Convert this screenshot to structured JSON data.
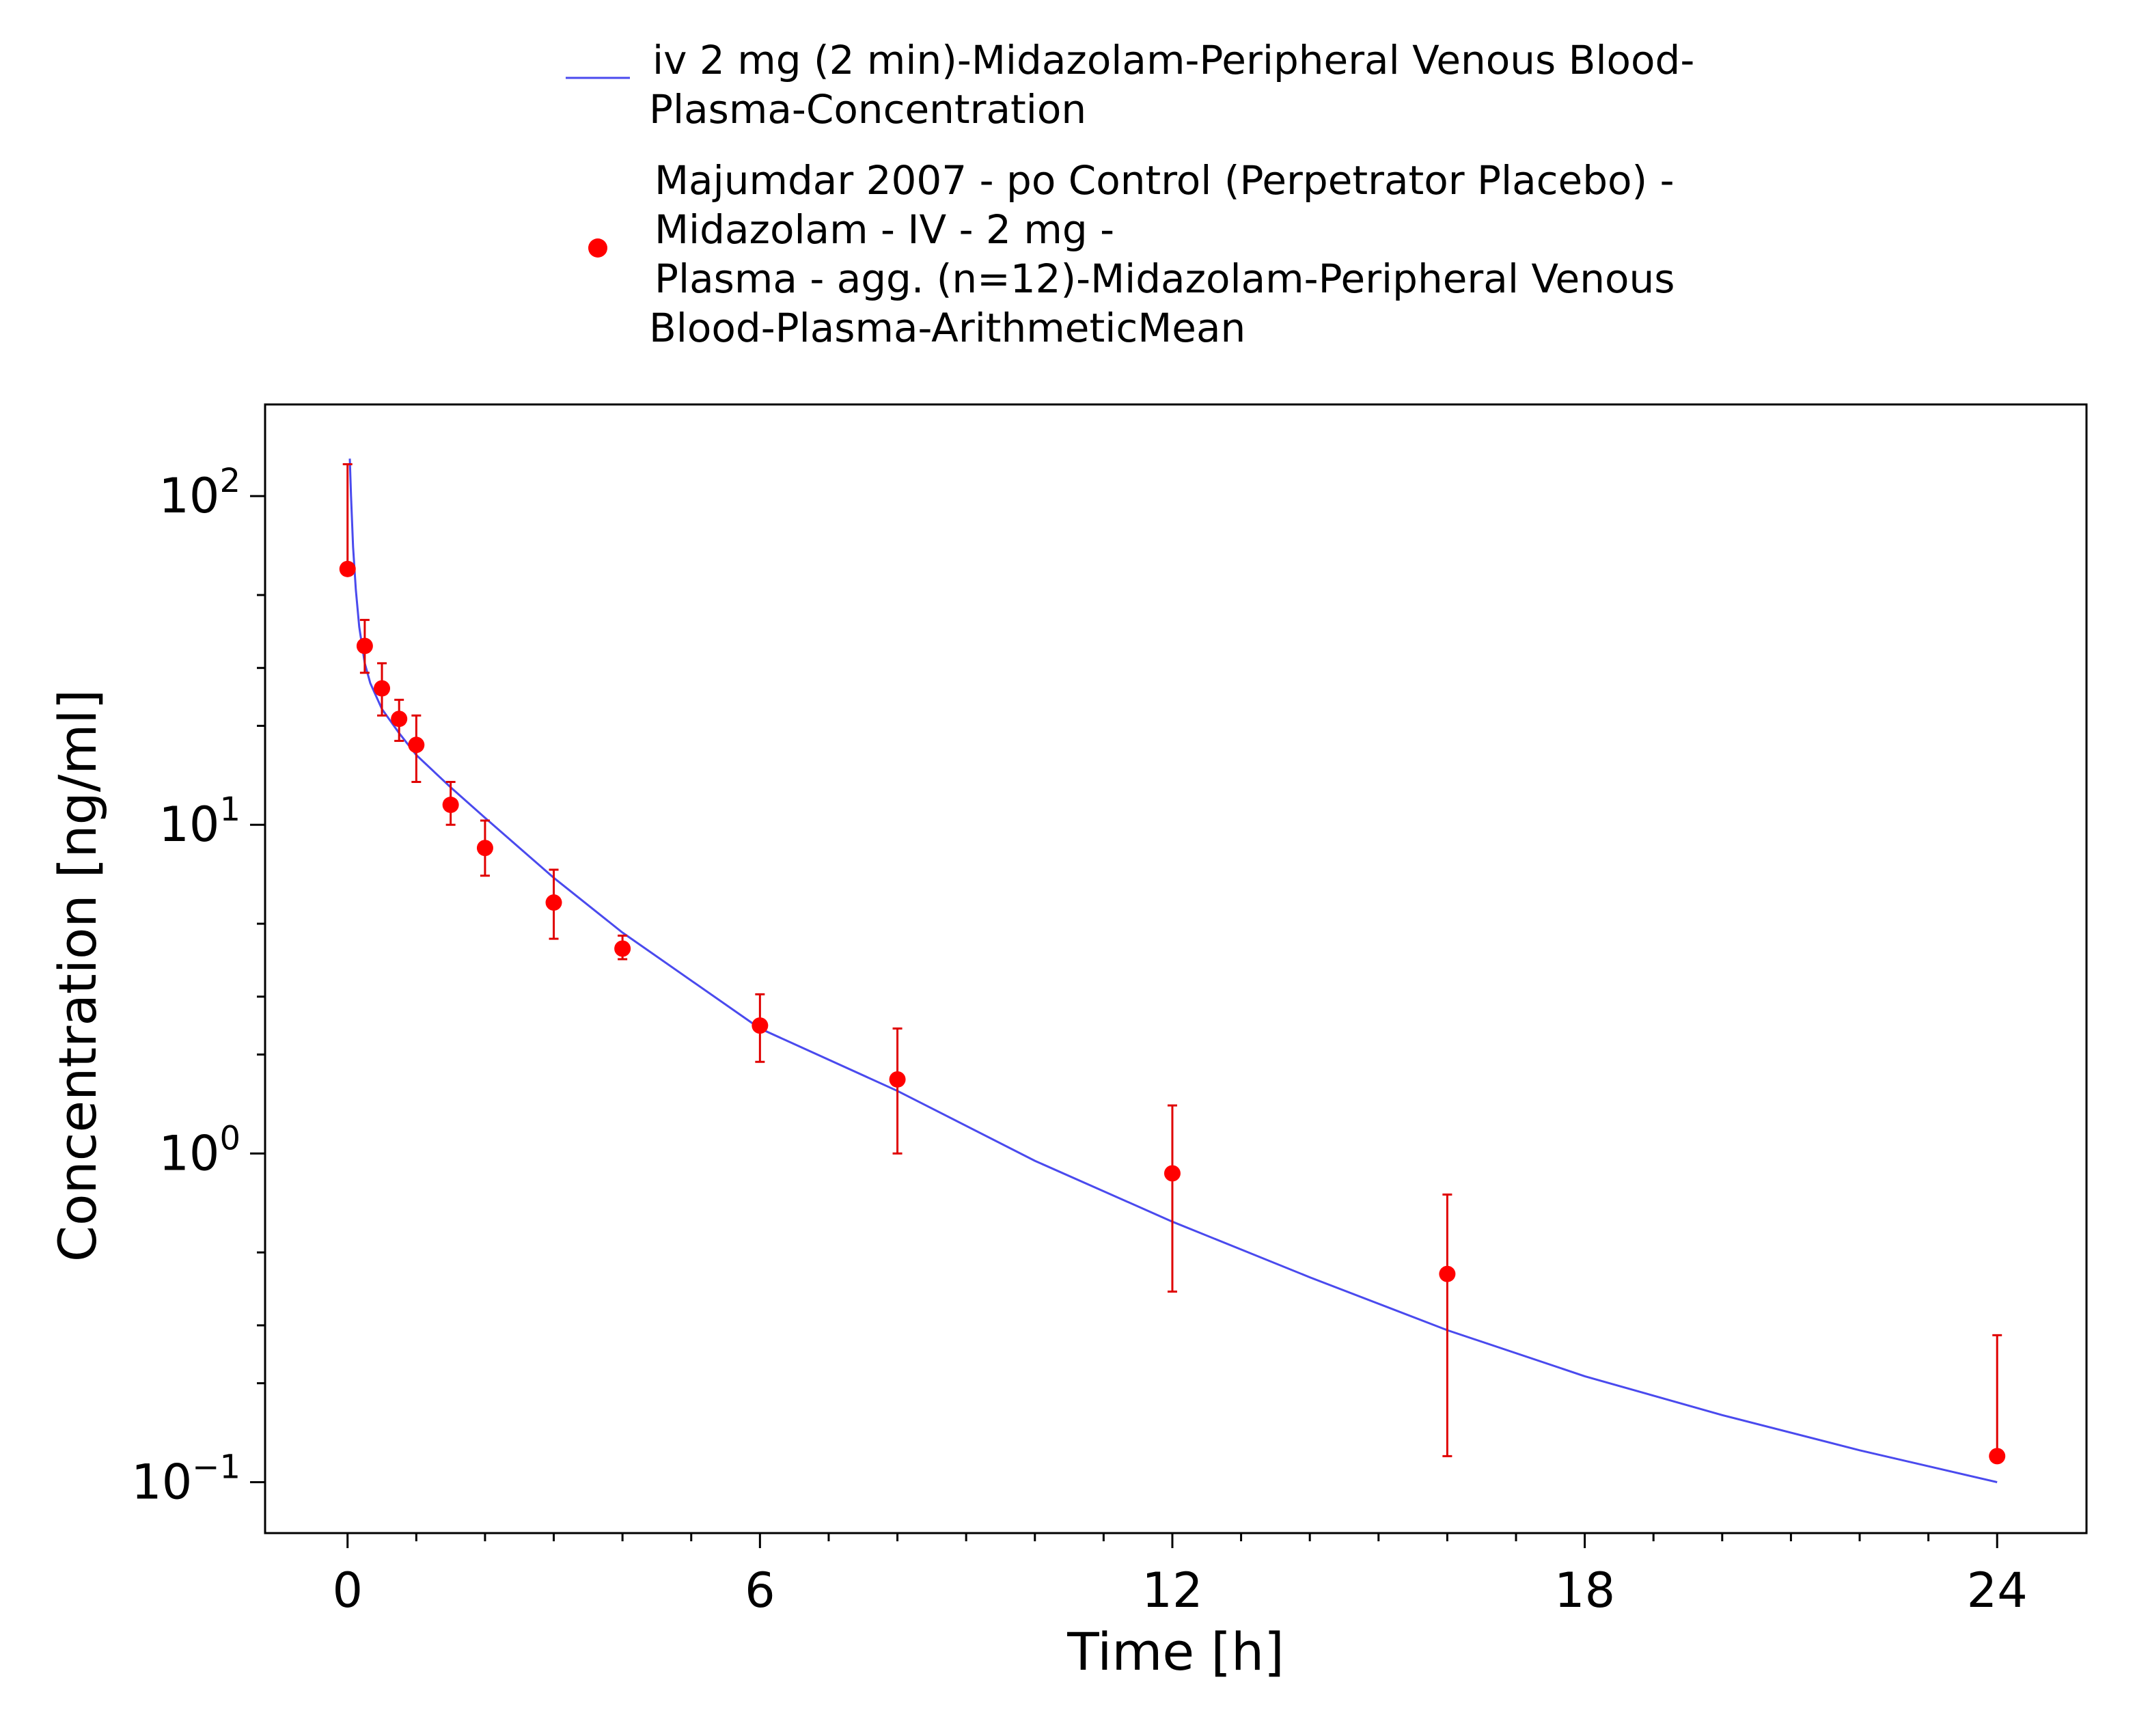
{
  "colors": {
    "simulation_line": "#4a4aee",
    "observed_points": "#ff0000",
    "error_bars": "#e00000",
    "axes": "#000000",
    "background": "#ffffff"
  },
  "legend": {
    "position": "top",
    "items": [
      {
        "marker": "line",
        "lines": [
          "iv 2 mg (2 min)-Midazolam-Peripheral Venous Blood-",
          "Plasma-Concentration"
        ]
      },
      {
        "marker": "dot",
        "lines": [
          "Majumdar 2007 - po Control (Perpetrator Placebo) -",
          "Midazolam - IV - 2 mg -",
          "Plasma - agg. (n=12)-Midazolam-Peripheral Venous",
          "Blood-Plasma-ArithmeticMean"
        ]
      }
    ]
  },
  "chart_data": {
    "type": "line",
    "title": "",
    "xlabel": "Time [h]",
    "ylabel": "Concentration [ng/ml]",
    "xlim": [
      -1.2,
      25.3
    ],
    "ylim": [
      0.07,
      190
    ],
    "yscale": "log",
    "grid": false,
    "x_ticks": [
      0,
      6,
      12,
      18,
      24
    ],
    "x_tick_labels": [
      "0",
      "6",
      "12",
      "18",
      "24"
    ],
    "y_ticks": [
      {
        "value": 100,
        "base": "10",
        "exp": "2"
      },
      {
        "value": 10,
        "base": "10",
        "exp": "1"
      },
      {
        "value": 1,
        "base": "10",
        "exp": "0"
      },
      {
        "value": 0.1,
        "base": "10",
        "exp": "−1"
      }
    ],
    "series": [
      {
        "name": "iv 2 mg (2 min)-Midazolam-Peripheral Venous Blood-Plasma-Concentration",
        "kind": "line",
        "x": [
          0.033,
          0.05,
          0.08,
          0.12,
          0.17,
          0.25,
          0.33,
          0.5,
          0.75,
          1.0,
          1.5,
          2.0,
          3.0,
          4.0,
          6.0,
          8.0,
          10.0,
          12.0,
          14.0,
          16.0,
          18.0,
          20.0,
          22.0,
          24.0
        ],
        "y": [
          130,
          100,
          70,
          52,
          40,
          31,
          27,
          22.5,
          19,
          16.3,
          13,
          10.5,
          6.9,
          4.7,
          2.4,
          1.55,
          0.95,
          0.62,
          0.42,
          0.29,
          0.21,
          0.16,
          0.125,
          0.1
        ]
      },
      {
        "name": "Majumdar 2007 - po Control (Perpetrator Placebo) - Midazolam - IV - 2 mg - Plasma - agg. (n=12)-Midazolam-Peripheral Venous Blood-Plasma-ArithmeticMean",
        "kind": "scatter",
        "points": [
          {
            "x": 0.0,
            "y": 60,
            "lo": 60,
            "hi": 125
          },
          {
            "x": 0.25,
            "y": 35,
            "lo": 29,
            "hi": 42
          },
          {
            "x": 0.5,
            "y": 26,
            "lo": 21.5,
            "hi": 31
          },
          {
            "x": 0.75,
            "y": 21,
            "lo": 18,
            "hi": 24
          },
          {
            "x": 1.0,
            "y": 17.5,
            "lo": 13.5,
            "hi": 21.5
          },
          {
            "x": 1.5,
            "y": 11.5,
            "lo": 10,
            "hi": 13.5
          },
          {
            "x": 2.0,
            "y": 8.5,
            "lo": 7,
            "hi": 10.3
          },
          {
            "x": 3.0,
            "y": 5.8,
            "lo": 4.5,
            "hi": 7.3
          },
          {
            "x": 4.0,
            "y": 4.2,
            "lo": 3.9,
            "hi": 4.6
          },
          {
            "x": 6.0,
            "y": 2.45,
            "lo": 1.9,
            "hi": 3.05
          },
          {
            "x": 8.0,
            "y": 1.68,
            "lo": 1.0,
            "hi": 2.4
          },
          {
            "x": 12.0,
            "y": 0.87,
            "lo": 0.38,
            "hi": 1.4
          },
          {
            "x": 16.0,
            "y": 0.43,
            "lo": 0.12,
            "hi": 0.75
          },
          {
            "x": 24.0,
            "y": 0.12,
            "lo": 0.12,
            "hi": 0.28
          }
        ]
      }
    ]
  }
}
